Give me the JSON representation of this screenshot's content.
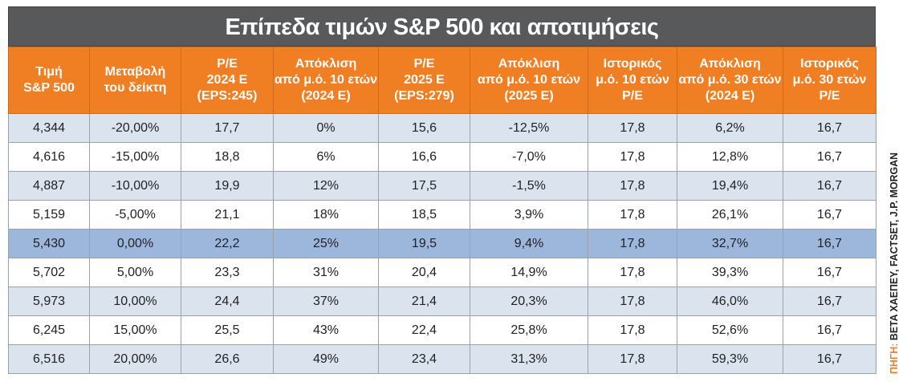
{
  "title": "Επίπεδα τιμών S&P 500 και αποτιμήσεις",
  "source": "ΠΗΓΗ: BETA ΧΑΕΠΕΥ, FACTSET, J.P. MORGAN",
  "colors": {
    "header": "#f07f24",
    "title_bar": "#58595b",
    "row_alt": "#dbe3ef",
    "row_highlight": "#9db7dc",
    "source_text": "#f07f24"
  },
  "chart_data": {
    "type": "table",
    "title": "Επίπεδα τιμών S&P 500 και αποτιμήσεις",
    "columns": [
      [
        "Τιμή",
        "S&P 500"
      ],
      [
        "Μεταβολή",
        "του δείκτη"
      ],
      [
        "P/E",
        "2024 E",
        "(EPS:245)"
      ],
      [
        "Απόκλιση",
        "από μ.ό. 10 ετών",
        "(2024 E)"
      ],
      [
        "P/E",
        "2025 E",
        "(EPS:279)"
      ],
      [
        "Απόκλιση",
        "από μ.ό. 10 ετών",
        "(2025 E)"
      ],
      [
        "Ιστορικός",
        "μ.ό. 10 ετών",
        "P/E"
      ],
      [
        "Απόκλιση",
        "από μ.ό. 30 ετών",
        "(2024 E)"
      ],
      [
        "Ιστορικός",
        "μ.ό. 30 ετών",
        "P/E"
      ]
    ],
    "rows": [
      [
        "4,344",
        "-20,00%",
        "17,7",
        "0%",
        "15,6",
        "-12,5%",
        "17,8",
        "6,2%",
        "16,7"
      ],
      [
        "4,616",
        "-15,00%",
        "18,8",
        "6%",
        "16,6",
        "-7,0%",
        "17,8",
        "12,8%",
        "16,7"
      ],
      [
        "4,887",
        "-10,00%",
        "19,9",
        "12%",
        "17,5",
        "-1,5%",
        "17,8",
        "19,4%",
        "16,7"
      ],
      [
        "5,159",
        "-5,00%",
        "21,1",
        "18%",
        "18,5",
        "3,9%",
        "17,8",
        "26,1%",
        "16,7"
      ],
      [
        "5,430",
        "0,00%",
        "22,2",
        "25%",
        "19,5",
        "9,4%",
        "17,8",
        "32,7%",
        "16,7"
      ],
      [
        "5,702",
        "5,00%",
        "23,3",
        "31%",
        "20,4",
        "14,9%",
        "17,8",
        "39,3%",
        "16,7"
      ],
      [
        "5,973",
        "10,00%",
        "24,4",
        "37%",
        "21,4",
        "20,3%",
        "17,8",
        "46,0%",
        "16,7"
      ],
      [
        "6,245",
        "15,00%",
        "25,5",
        "43%",
        "22,4",
        "25,8%",
        "17,8",
        "52,6%",
        "16,7"
      ],
      [
        "6,516",
        "20,00%",
        "26,6",
        "49%",
        "23,4",
        "31,3%",
        "17,8",
        "59,3%",
        "16,7"
      ]
    ],
    "highlighted_row": 4
  }
}
